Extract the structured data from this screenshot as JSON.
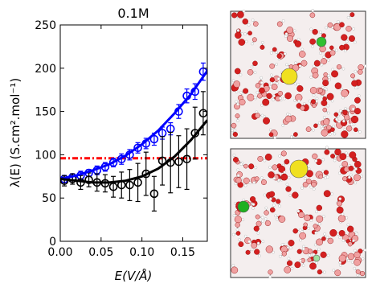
{
  "chart_data": {
    "type": "line",
    "title": "0.1M",
    "x_label": "E(V/Å)",
    "y_label": "λ(E) (S.cm².mol⁻¹)",
    "xlim": [
      0,
      0.18
    ],
    "ylim": [
      0,
      250
    ],
    "xticks": [
      {
        "value": 0,
        "label": "0.00"
      },
      {
        "value": 0.05,
        "label": "0.05"
      },
      {
        "value": 0.1,
        "label": "0.10"
      },
      {
        "value": 0.15,
        "label": "0.15"
      }
    ],
    "yticks": [
      0,
      50,
      100,
      150,
      200,
      250
    ],
    "reference_line": {
      "value": 96,
      "color": "#ff0000"
    },
    "series": [
      {
        "style": "markers",
        "color": "#0000ff",
        "x": [
          0.005,
          0.015,
          0.025,
          0.035,
          0.045,
          0.055,
          0.065,
          0.075,
          0.085,
          0.095,
          0.105,
          0.115,
          0.125,
          0.135,
          0.145,
          0.155,
          0.165,
          0.175
        ],
        "values": [
          72,
          74,
          76,
          79,
          82,
          86,
          91,
          95,
          100,
          108,
          113,
          118,
          125,
          130,
          150,
          168,
          173,
          196
        ],
        "errors": [
          4,
          4,
          5,
          4,
          5,
          5,
          5,
          6,
          6,
          6,
          6,
          7,
          7,
          7,
          8,
          8,
          9,
          10
        ]
      },
      {
        "style": "markers",
        "color": "#000000",
        "x": [
          0.005,
          0.015,
          0.025,
          0.035,
          0.045,
          0.055,
          0.065,
          0.075,
          0.085,
          0.095,
          0.105,
          0.115,
          0.125,
          0.135,
          0.145,
          0.155,
          0.165,
          0.175
        ],
        "values": [
          70,
          72,
          68,
          71,
          68,
          67,
          63,
          65,
          65,
          68,
          78,
          55,
          93,
          91,
          92,
          95,
          125,
          148
        ],
        "errors": [
          6,
          6,
          8,
          8,
          10,
          10,
          12,
          15,
          18,
          22,
          25,
          20,
          28,
          35,
          30,
          35,
          30,
          25
        ]
      },
      {
        "style": "line",
        "color": "#0000ff",
        "x": [
          0,
          0.02,
          0.04,
          0.06,
          0.08,
          0.1,
          0.12,
          0.14,
          0.16,
          0.18
        ],
        "values": [
          72,
          76,
          82,
          89,
          99,
          112,
          128,
          148,
          170,
          197
        ]
      },
      {
        "style": "line",
        "color": "#000000",
        "x": [
          0,
          0.02,
          0.04,
          0.06,
          0.08,
          0.1,
          0.12,
          0.14,
          0.16,
          0.18
        ],
        "values": [
          72,
          70,
          68,
          68,
          70,
          75,
          84,
          98,
          117,
          140
        ]
      }
    ]
  }
}
